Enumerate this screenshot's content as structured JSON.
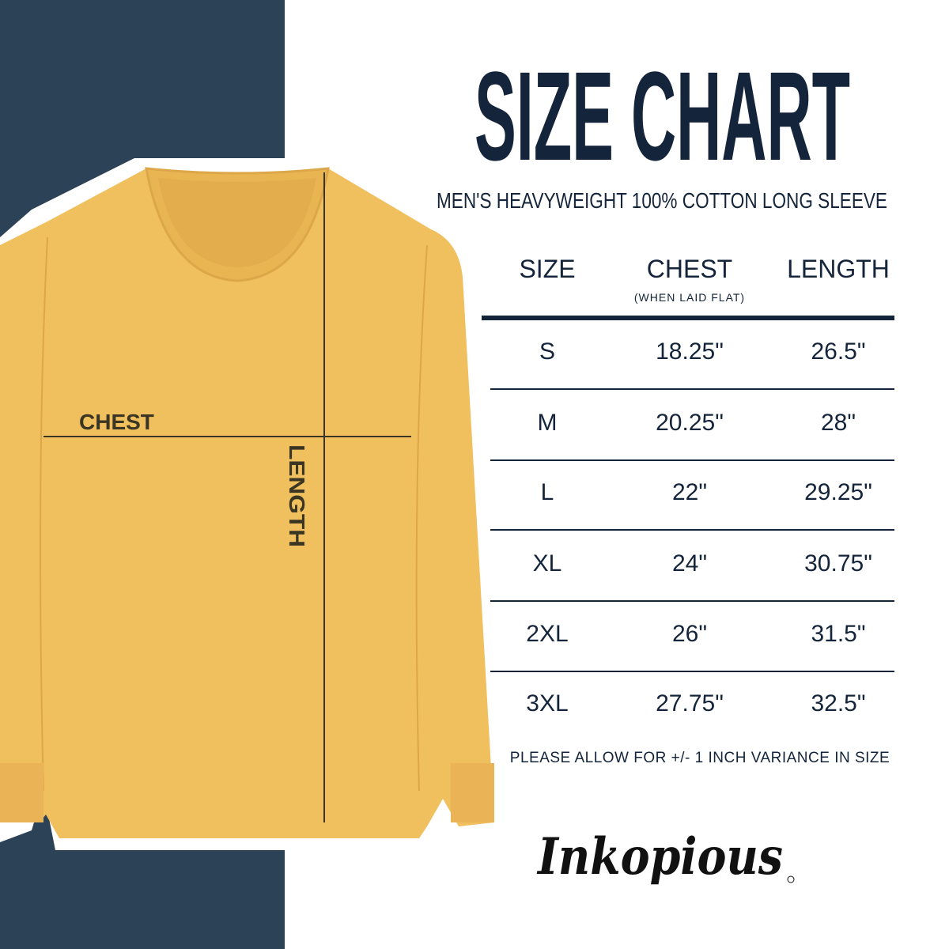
{
  "title": "SIZE CHART",
  "subtitle": "MEN'S HEAVYWEIGHT 100% COTTON LONG SLEEVE",
  "colors": {
    "navy_panel": "#2c4256",
    "text": "#14243a",
    "shirt": "#f0bf5e"
  },
  "diagram": {
    "chest_label": "CHEST",
    "length_label": "LENGTH"
  },
  "table": {
    "headers": {
      "size": "SIZE",
      "chest": "CHEST",
      "chest_note": "(WHEN LAID FLAT)",
      "length": "LENGTH"
    },
    "rows": [
      {
        "size": "S",
        "chest": "18.25\"",
        "length": "26.5\""
      },
      {
        "size": "M",
        "chest": "20.25\"",
        "length": "28\""
      },
      {
        "size": "L",
        "chest": "22\"",
        "length": "29.25\""
      },
      {
        "size": "XL",
        "chest": "24\"",
        "length": "30.75\""
      },
      {
        "size": "2XL",
        "chest": "26\"",
        "length": "31.5\""
      },
      {
        "size": "3XL",
        "chest": "27.75\"",
        "length": "32.5\""
      }
    ]
  },
  "note": "PLEASE ALLOW FOR +/- 1 INCH VARIANCE IN SIZE",
  "brand": "Inkopious"
}
